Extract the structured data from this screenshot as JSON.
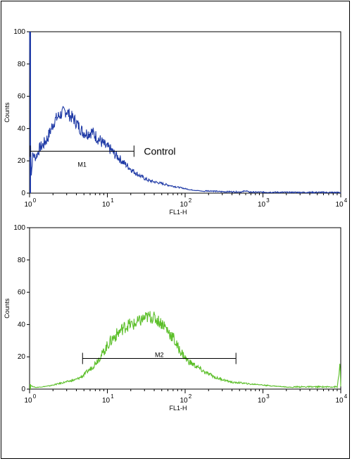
{
  "chart_data": [
    {
      "type": "line",
      "xlabel": "FL1-H",
      "ylabel": "Counts",
      "x_scale": "log",
      "xlim": [
        1,
        10000
      ],
      "ylim": [
        0,
        100
      ],
      "x_ticks": [
        {
          "base": "10",
          "exp": "0"
        },
        {
          "base": "10",
          "exp": "1"
        },
        {
          "base": "10",
          "exp": "2"
        },
        {
          "base": "10",
          "exp": "3"
        },
        {
          "base": "10",
          "exp": "4"
        }
      ],
      "y_ticks": [
        "0",
        "20",
        "40",
        "60",
        "80",
        "100"
      ],
      "color": "#1f3aa6",
      "gate": {
        "label": "M1",
        "x_start": 1.02,
        "x_end": 22,
        "level": 26
      },
      "annotation": "Control",
      "series": [
        {
          "x": [
            1,
            1.02,
            1.05,
            1.1,
            1.2,
            1.35,
            1.5,
            1.7,
            1.9,
            2.1,
            2.4,
            2.7,
            3.0,
            3.3,
            3.7,
            4.2,
            4.8,
            5.5,
            6.3,
            7.2,
            8.3,
            9.5,
            11,
            12.5,
            14,
            16,
            18,
            21,
            24,
            28,
            33,
            40,
            50,
            60,
            75,
            95,
            120,
            150,
            180,
            220,
            280,
            350,
            450,
            550,
            600,
            650,
            800,
            1000,
            2000,
            5000,
            10000
          ],
          "y": [
            100,
            45,
            10,
            24,
            22,
            28,
            30,
            34,
            40,
            45,
            48,
            50,
            51,
            48,
            46,
            42,
            38,
            37,
            38,
            35,
            32,
            29,
            27,
            24,
            22,
            19,
            17,
            14,
            12,
            10,
            8,
            7,
            6,
            5,
            4,
            3,
            2,
            1.5,
            1,
            1,
            0.5,
            0.5,
            0.4,
            0.4,
            1.5,
            0.3,
            0.2,
            0.2,
            0.1,
            0.1,
            0
          ]
        }
      ]
    },
    {
      "type": "line",
      "xlabel": "FL1-H",
      "ylabel": "Counts",
      "x_scale": "log",
      "xlim": [
        1,
        10000
      ],
      "ylim": [
        0,
        100
      ],
      "x_ticks": [
        {
          "base": "10",
          "exp": "0"
        },
        {
          "base": "10",
          "exp": "1"
        },
        {
          "base": "10",
          "exp": "2"
        },
        {
          "base": "10",
          "exp": "3"
        },
        {
          "base": "10",
          "exp": "4"
        }
      ],
      "y_ticks": [
        "0",
        "20",
        "40",
        "60",
        "80",
        "100"
      ],
      "color": "#5cbf2a",
      "gate": {
        "label": "M2",
        "x_start": 4.8,
        "x_end": 450,
        "level": 19
      },
      "series": [
        {
          "x": [
            1,
            1.05,
            1.2,
            1.5,
            1.8,
            2.2,
            2.7,
            3.3,
            4.0,
            4.8,
            5.6,
            6.5,
            7.5,
            8.7,
            10,
            12,
            14,
            16,
            19,
            22,
            26,
            30,
            35,
            40,
            46,
            53,
            60,
            70,
            80,
            92,
            105,
            120,
            140,
            160,
            185,
            210,
            250,
            300,
            350,
            420,
            500,
            600,
            700,
            850,
            1000,
            1300,
            1800,
            2500,
            4000,
            6000,
            9000,
            9800,
            10000
          ],
          "y": [
            3,
            2,
            1,
            1.5,
            2,
            3,
            4,
            5,
            6,
            8,
            11,
            14,
            18,
            22,
            27,
            32,
            35,
            38,
            40,
            40,
            42,
            44,
            45,
            44,
            42,
            40,
            36,
            32,
            26,
            22,
            18,
            16,
            14,
            12,
            10,
            9,
            7,
            6,
            5,
            4,
            4,
            3.5,
            3,
            3,
            2.5,
            2,
            1.5,
            1,
            1,
            1,
            1,
            15,
            1
          ]
        }
      ]
    }
  ]
}
